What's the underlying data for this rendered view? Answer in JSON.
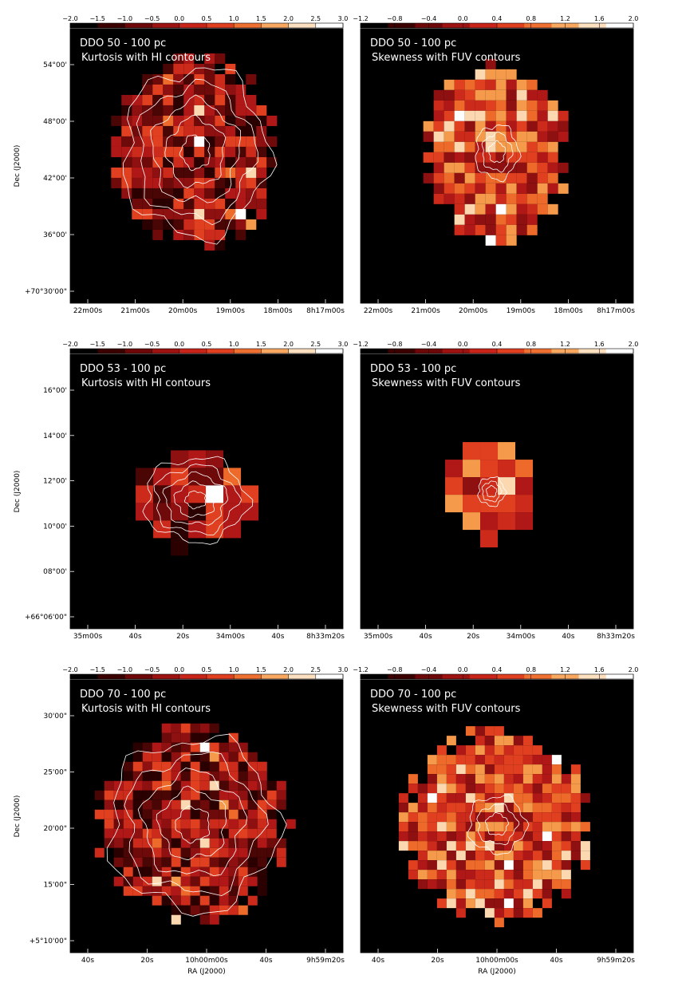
{
  "colorbars": {
    "kurtosis": {
      "labels": [
        "−2.0",
        "−1.5",
        "−1.0",
        "−0.5",
        "0.0",
        "0.5",
        "1.0",
        "1.5",
        "2.0",
        "2.5",
        "3.0"
      ]
    },
    "skewness": {
      "labels": [
        "−1.2",
        "−0.8",
        "−0.4",
        "0.0",
        "0.4",
        "0.8",
        "1.2",
        "1.6",
        "2.0"
      ]
    }
  },
  "colors": {
    "bg": "#000000",
    "contour": "#ffffff",
    "low": "#3a0000",
    "mid": "#d42020",
    "high": "#f08030",
    "max": "#fff0e0"
  },
  "rows": [
    {
      "ylabel": "Dec (J2000)",
      "xlabel": "",
      "left": {
        "title_line1": "DDO 50 - 100 pc",
        "title_line2": "Kurtosis with HI contours",
        "yticks": [
          "54°00'",
          "48°00'",
          "42°00'",
          "36°00'",
          "+70°30'00\""
        ],
        "xticks": [
          "22m00s",
          "21m00s",
          "20m00s",
          "19m00s",
          "18m00s",
          "8h17m00s"
        ]
      },
      "right": {
        "title_line1": "DDO 50 - 100 pc",
        "title_line2": "Skewness with FUV contours",
        "xticks": [
          "22m00s",
          "21m00s",
          "20m00s",
          "19m00s",
          "18m00s",
          "8h17m00s"
        ]
      }
    },
    {
      "ylabel": "Dec (J2000)",
      "xlabel": "",
      "left": {
        "title_line1": "DDO 53 - 100 pc",
        "title_line2": "Kurtosis with HI contours",
        "yticks": [
          "16°00'",
          "14°00'",
          "12°00'",
          "10°00'",
          "08°00'",
          "+66°06'00\""
        ],
        "xticks": [
          "35m00s",
          "40s",
          "20s",
          "34m00s",
          "40s",
          "8h33m20s"
        ]
      },
      "right": {
        "title_line1": "DDO 53 - 100 pc",
        "title_line2": "Skewness with FUV contours",
        "xticks": [
          "35m00s",
          "40s",
          "20s",
          "34m00s",
          "40s",
          "8h33m20s"
        ]
      }
    },
    {
      "ylabel": "Dec (J2000)",
      "xlabel": "RA (J2000)",
      "left": {
        "title_line1": "DDO 70 - 100 pc",
        "title_line2": "Kurtosis with HI contours",
        "yticks": [
          "30'00\"",
          "25'00\"",
          "20'00\"",
          "15'00\"",
          "+5°10'00\""
        ],
        "xticks": [
          "40s",
          "20s",
          "10h00m00s",
          "40s",
          "9h59m20s"
        ]
      },
      "right": {
        "title_line1": "DDO 70 - 100 pc",
        "title_line2": "Skewness with FUV contours",
        "xticks": [
          "40s",
          "20s",
          "10h00m00s",
          "40s",
          "9h59m20s"
        ]
      }
    }
  ]
}
